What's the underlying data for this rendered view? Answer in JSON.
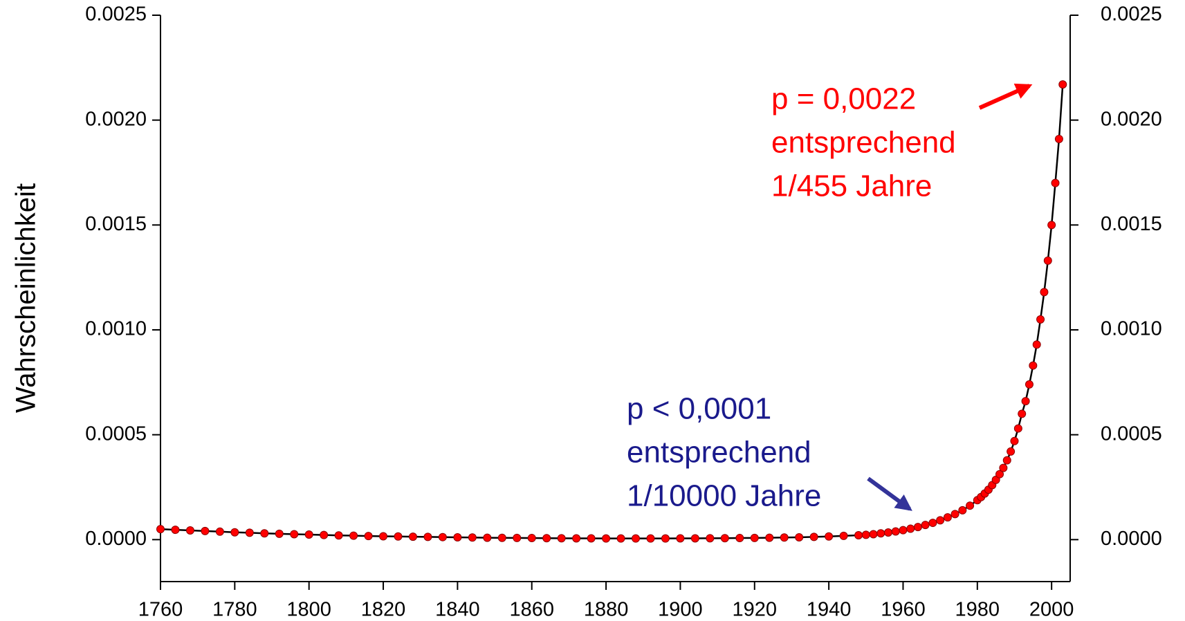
{
  "chart_data": {
    "type": "scatter-line",
    "y_label": "Wahrscheinlichkeit",
    "x": [
      1760,
      1764,
      1768,
      1772,
      1776,
      1780,
      1784,
      1788,
      1792,
      1796,
      1800,
      1804,
      1808,
      1812,
      1816,
      1820,
      1824,
      1828,
      1832,
      1836,
      1840,
      1844,
      1848,
      1852,
      1856,
      1860,
      1864,
      1868,
      1872,
      1876,
      1880,
      1884,
      1888,
      1892,
      1896,
      1900,
      1904,
      1908,
      1912,
      1916,
      1920,
      1924,
      1928,
      1932,
      1936,
      1940,
      1944,
      1948,
      1950,
      1952,
      1954,
      1956,
      1958,
      1960,
      1962,
      1964,
      1966,
      1968,
      1970,
      1972,
      1974,
      1976,
      1978,
      1980,
      1981,
      1982,
      1983,
      1984,
      1985,
      1986,
      1987,
      1988,
      1989,
      1990,
      1991,
      1992,
      1993,
      1994,
      1995,
      1996,
      1997,
      1998,
      1999,
      2000,
      2001,
      2002,
      2003
    ],
    "values": [
      5e-05,
      4.7e-05,
      4.4e-05,
      4.1e-05,
      3.8e-05,
      3.5e-05,
      3.3e-05,
      3e-05,
      2.8e-05,
      2.6e-05,
      2.4e-05,
      2.2e-05,
      2e-05,
      1.9e-05,
      1.7e-05,
      1.6e-05,
      1.5e-05,
      1.4e-05,
      1.3e-05,
      1.2e-05,
      1.1e-05,
      1e-05,
      9e-06,
      8.5e-06,
      8e-06,
      7.5e-06,
      7e-06,
      6.5e-06,
      6e-06,
      6e-06,
      5.5e-06,
      5.5e-06,
      5.5e-06,
      5.5e-06,
      5.5e-06,
      6e-06,
      6e-06,
      6.5e-06,
      7e-06,
      7.5e-06,
      8e-06,
      9e-06,
      1e-05,
      1.1e-05,
      1.3e-05,
      1.5e-05,
      1.8e-05,
      2.1e-05,
      2.3e-05,
      2.6e-05,
      3e-05,
      3.4e-05,
      3.9e-05,
      4.5e-05,
      5.2e-05,
      6e-05,
      7e-05,
      8e-05,
      9.2e-05,
      0.000106,
      0.000122,
      0.00014,
      0.000162,
      0.000188,
      0.000203,
      0.00022,
      0.000238,
      0.00026,
      0.000285,
      0.000312,
      0.000342,
      0.000378,
      0.00042,
      0.00047,
      0.00053,
      0.0006,
      0.00066,
      0.00074,
      0.00083,
      0.00093,
      0.00105,
      0.00118,
      0.00133,
      0.0015,
      0.0017,
      0.00191,
      0.00217
    ],
    "color": "#ff0000",
    "line_color": "#000000",
    "xlim": [
      1760,
      2005
    ],
    "xticks": [
      1760,
      1780,
      1800,
      1820,
      1840,
      1860,
      1880,
      1900,
      1920,
      1940,
      1960,
      1980,
      2000
    ],
    "ylim": [
      -0.0002,
      0.0025
    ],
    "yticks": [
      {
        "value": 0,
        "label": "0.0000"
      },
      0.0005,
      {
        "value": 0.001,
        "label": "0.0010"
      },
      0.0015,
      {
        "value": 0.002,
        "label": "0.0020"
      },
      0.0025
    ],
    "y2lim": [
      -0.0002,
      0.0025
    ],
    "y2ticks": [
      {
        "value": 0,
        "label": "0.0000"
      },
      0.0005,
      {
        "value": 0.001,
        "label": "0.0010"
      },
      0.0015,
      {
        "value": 0.002,
        "label": "0.0020"
      },
      0.0025
    ],
    "annotations": [
      {
        "lines": [
          "p = 0,0022",
          "entsprechend",
          "1/455 Jahre"
        ],
        "color": "#ff0000"
      },
      {
        "lines": [
          "p < 0,0001",
          "entsprechend",
          "1/10000 Jahre"
        ],
        "color": "#1a1a8c"
      }
    ]
  }
}
